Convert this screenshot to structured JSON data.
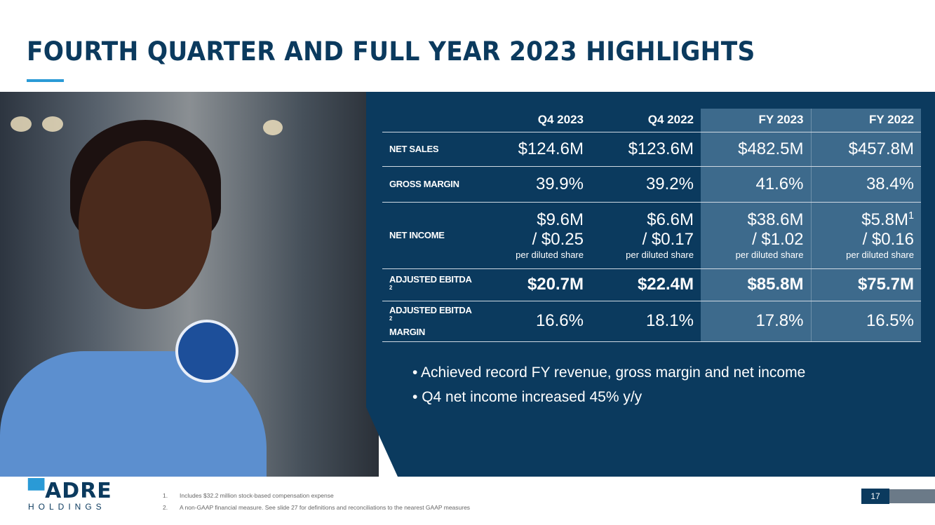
{
  "title": "FOURTH QUARTER AND FULL YEAR 2023 HIGHLIGHTS",
  "table": {
    "headers": [
      "Q4 2023",
      "Q4 2022",
      "FY 2023",
      "FY 2022"
    ],
    "rows": [
      {
        "label": "NET SALES",
        "values": [
          "$124.6M",
          "$123.6M",
          "$482.5M",
          "$457.8M"
        ]
      },
      {
        "label": "GROSS MARGIN",
        "values": [
          "39.9%",
          "39.2%",
          "41.6%",
          "38.4%"
        ]
      },
      {
        "label": "NET INCOME",
        "values": [
          "$9.6M",
          "$6.6M",
          "$38.6M",
          "$5.8M"
        ],
        "eps": [
          "/ $0.25",
          "/ $0.17",
          "/ $1.02",
          "/ $0.16"
        ],
        "note": "per diluted share",
        "fy2022_footnote": "1"
      },
      {
        "label": "ADJUSTED EBITDA",
        "footnote": "2",
        "values": [
          "$20.7M",
          "$22.4M",
          "$85.8M",
          "$75.7M"
        ]
      },
      {
        "label": "ADJUSTED EBITDA",
        "label2": "MARGIN",
        "footnote": "2",
        "values": [
          "16.6%",
          "18.1%",
          "17.8%",
          "16.5%"
        ]
      }
    ]
  },
  "bullets": [
    "Achieved record FY revenue, gross margin and net income",
    "Q4 net income increased 45% y/y"
  ],
  "logo": {
    "name": "CADRE",
    "sub": "HOLDINGS"
  },
  "footnotes": [
    {
      "num": "1.",
      "text": "Includes $32.2 million stock-based compensation expense"
    },
    {
      "num": "2.",
      "text": "A non-GAAP financial measure. See slide 27  for definitions and reconciliations to the nearest GAAP measures"
    }
  ],
  "page_number": "17",
  "colors": {
    "navy": "#0b3a5e",
    "accent": "#2a9ad6",
    "highlight": "#3d6a8c"
  }
}
